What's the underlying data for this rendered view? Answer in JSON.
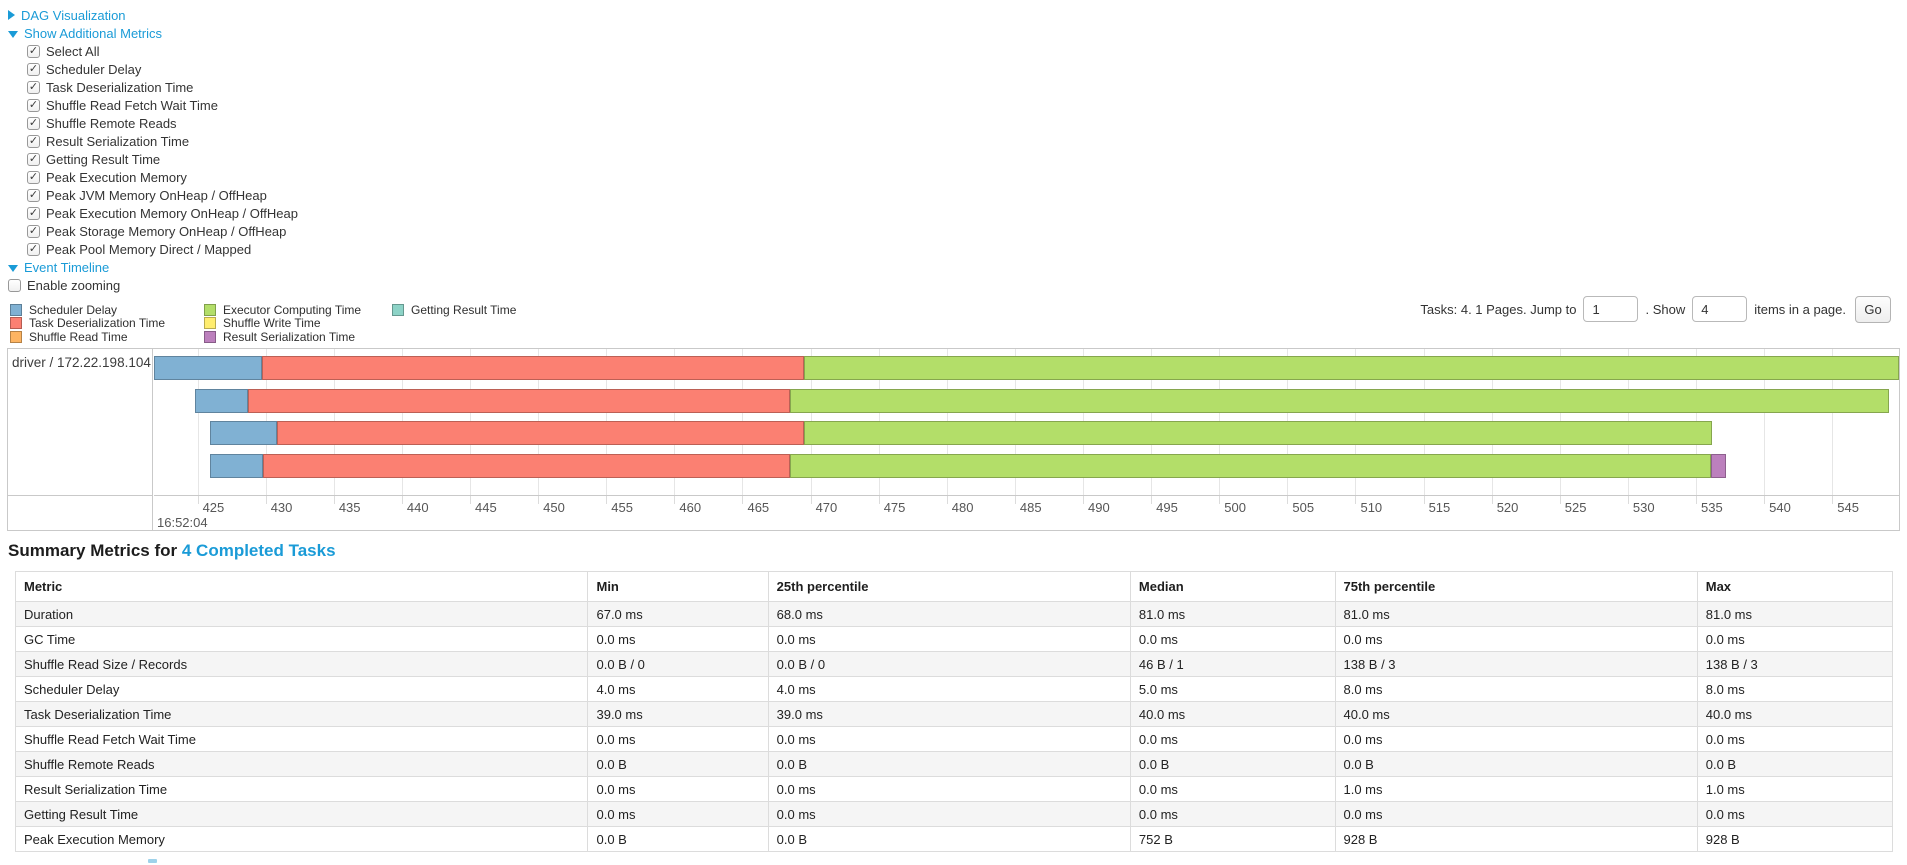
{
  "toggles": {
    "dag": "DAG Visualization",
    "additional_metrics": "Show Additional Metrics",
    "event_timeline": "Event Timeline"
  },
  "metrics_checkboxes": [
    {
      "label": "Select All",
      "checked": true
    },
    {
      "label": "Scheduler Delay",
      "checked": true
    },
    {
      "label": "Task Deserialization Time",
      "checked": true
    },
    {
      "label": "Shuffle Read Fetch Wait Time",
      "checked": true
    },
    {
      "label": "Shuffle Remote Reads",
      "checked": true
    },
    {
      "label": "Result Serialization Time",
      "checked": true
    },
    {
      "label": "Getting Result Time",
      "checked": true
    },
    {
      "label": "Peak Execution Memory",
      "checked": true
    },
    {
      "label": "Peak JVM Memory OnHeap / OffHeap",
      "checked": true
    },
    {
      "label": "Peak Execution Memory OnHeap / OffHeap",
      "checked": true
    },
    {
      "label": "Peak Storage Memory OnHeap / OffHeap",
      "checked": true
    },
    {
      "label": "Peak Pool Memory Direct / Mapped",
      "checked": true
    }
  ],
  "enable_zooming": {
    "label": "Enable zooming",
    "checked": false
  },
  "palette": {
    "scheduler_delay": "#80B1D3",
    "task_deserialization": "#FB8072",
    "shuffle_read": "#FDB462",
    "executor_computing": "#B3DE69",
    "shuffle_write": "#FFED6F",
    "result_serialization": "#BC80BD",
    "getting_result": "#8DD3C7"
  },
  "legend": {
    "columns": [
      [
        {
          "label": "Scheduler Delay",
          "color_key": "scheduler_delay"
        },
        {
          "label": "Task Deserialization Time",
          "color_key": "task_deserialization"
        },
        {
          "label": "Shuffle Read Time",
          "color_key": "shuffle_read"
        }
      ],
      [
        {
          "label": "Executor Computing Time",
          "color_key": "executor_computing"
        },
        {
          "label": "Shuffle Write Time",
          "color_key": "shuffle_write"
        },
        {
          "label": "Result Serialization Time",
          "color_key": "result_serialization"
        }
      ],
      [
        {
          "label": "Getting Result Time",
          "color_key": "getting_result"
        }
      ]
    ]
  },
  "pagination": {
    "summary_text": "Tasks: 4. 1 Pages. Jump to",
    "jump_value": "1",
    "show_label": ". Show",
    "show_value": "4",
    "suffix_text": "items in a page.",
    "go_label": "Go"
  },
  "chart_data": {
    "type": "timeline",
    "group_label": "driver / 172.22.198.104",
    "axis": {
      "min": 421.8,
      "max": 549.9,
      "tick_start": 425,
      "tick_step": 5,
      "tick_end": 550,
      "major_label": "16:52:04"
    },
    "tasks": [
      {
        "segments": [
          {
            "type": "scheduler_delay",
            "start": 421.8,
            "end": 429.7
          },
          {
            "type": "task_deserialization",
            "start": 429.7,
            "end": 469.5
          },
          {
            "type": "executor_computing",
            "start": 469.5,
            "end": 549.9
          }
        ]
      },
      {
        "segments": [
          {
            "type": "scheduler_delay",
            "start": 424.8,
            "end": 428.7
          },
          {
            "type": "task_deserialization",
            "start": 428.7,
            "end": 468.5
          },
          {
            "type": "executor_computing",
            "start": 468.5,
            "end": 549.2
          }
        ]
      },
      {
        "segments": [
          {
            "type": "scheduler_delay",
            "start": 425.9,
            "end": 430.8
          },
          {
            "type": "task_deserialization",
            "start": 430.8,
            "end": 469.5
          },
          {
            "type": "executor_computing",
            "start": 469.5,
            "end": 536.2
          }
        ]
      },
      {
        "segments": [
          {
            "type": "scheduler_delay",
            "start": 425.9,
            "end": 429.8
          },
          {
            "type": "task_deserialization",
            "start": 429.8,
            "end": 468.5
          },
          {
            "type": "executor_computing",
            "start": 468.5,
            "end": 536.1
          },
          {
            "type": "result_serialization",
            "start": 536.1,
            "end": 537.2
          }
        ]
      }
    ]
  },
  "summary": {
    "title_prefix": "Summary Metrics for",
    "title_link": "4 Completed Tasks",
    "table": {
      "headers": [
        "Metric",
        "Min",
        "25th percentile",
        "Median",
        "75th percentile",
        "Max"
      ],
      "rows": [
        {
          "metric": "Duration",
          "values": [
            "67.0 ms",
            "68.0 ms",
            "81.0 ms",
            "81.0 ms",
            "81.0 ms"
          ]
        },
        {
          "metric": "GC Time",
          "values": [
            "0.0 ms",
            "0.0 ms",
            "0.0 ms",
            "0.0 ms",
            "0.0 ms"
          ]
        },
        {
          "metric": "Shuffle Read Size / Records",
          "values": [
            "0.0 B / 0",
            "0.0 B / 0",
            "46 B / 1",
            "138 B / 3",
            "138 B / 3"
          ]
        },
        {
          "metric": "Scheduler Delay",
          "values": [
            "4.0 ms",
            "4.0 ms",
            "5.0 ms",
            "8.0 ms",
            "8.0 ms"
          ]
        },
        {
          "metric": "Task Deserialization Time",
          "values": [
            "39.0 ms",
            "39.0 ms",
            "40.0 ms",
            "40.0 ms",
            "40.0 ms"
          ]
        },
        {
          "metric": "Shuffle Read Fetch Wait Time",
          "values": [
            "0.0 ms",
            "0.0 ms",
            "0.0 ms",
            "0.0 ms",
            "0.0 ms"
          ]
        },
        {
          "metric": "Shuffle Remote Reads",
          "values": [
            "0.0 B",
            "0.0 B",
            "0.0 B",
            "0.0 B",
            "0.0 B"
          ]
        },
        {
          "metric": "Result Serialization Time",
          "values": [
            "0.0 ms",
            "0.0 ms",
            "0.0 ms",
            "1.0 ms",
            "1.0 ms"
          ]
        },
        {
          "metric": "Getting Result Time",
          "values": [
            "0.0 ms",
            "0.0 ms",
            "0.0 ms",
            "0.0 ms",
            "0.0 ms"
          ]
        },
        {
          "metric": "Peak Execution Memory",
          "values": [
            "0.0 B",
            "0.0 B",
            "752 B",
            "928 B",
            "928 B"
          ]
        }
      ]
    }
  }
}
